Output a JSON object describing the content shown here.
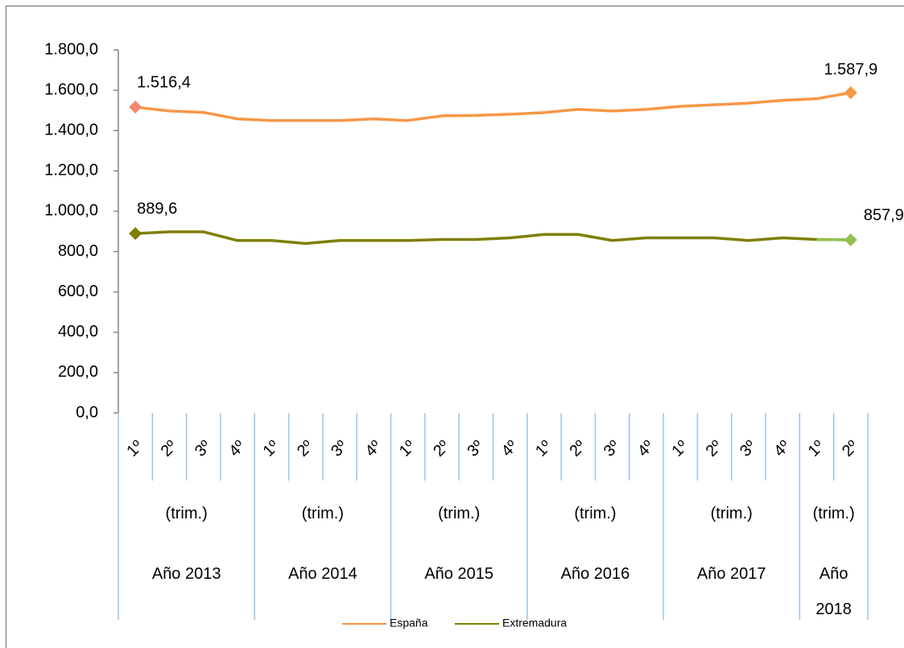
{
  "chart_data": {
    "type": "line",
    "groups": [
      {
        "name": "Año 2013",
        "sub": "(trim.)",
        "categories": [
          "1º",
          "2º",
          "3º",
          "4º"
        ]
      },
      {
        "name": "Año 2014",
        "sub": "(trim.)",
        "categories": [
          "1º",
          "2º",
          "3º",
          "4º"
        ]
      },
      {
        "name": "Año 2015",
        "sub": "(trim.)",
        "categories": [
          "1º",
          "2º",
          "3º",
          "4º"
        ]
      },
      {
        "name": "Año 2016",
        "sub": "(trim.)",
        "categories": [
          "1º",
          "2º",
          "3º",
          "4º"
        ]
      },
      {
        "name": "Año 2017",
        "sub": "(trim.)",
        "categories": [
          "1º",
          "2º",
          "3º",
          "4º"
        ]
      },
      {
        "name": "Año 2018",
        "sub": "(trim.)",
        "categories": [
          "1º",
          "2º"
        ]
      }
    ],
    "series": [
      {
        "name": "España",
        "color": "#f79646",
        "marker_colors": [
          "#f4876e",
          "#f79646"
        ],
        "values": [
          1516.4,
          1497,
          1490,
          1458,
          1450,
          1450,
          1450,
          1458,
          1450,
          1473,
          1475,
          1481,
          1489,
          1505,
          1497,
          1505,
          1520,
          1528,
          1536,
          1550,
          1558,
          1587.9
        ],
        "value_labels": [
          "1.516,4",
          null,
          null,
          null,
          null,
          null,
          null,
          null,
          null,
          null,
          null,
          null,
          null,
          null,
          null,
          null,
          null,
          null,
          null,
          null,
          null,
          "1.587,9"
        ]
      },
      {
        "name": "Extremadura",
        "color": "#7f7f00",
        "marker_colors": [
          "#7f7f00",
          "#92c050"
        ],
        "last_segment_color": "#92c050",
        "values": [
          889.6,
          898,
          898,
          855,
          855,
          840,
          855,
          855,
          855,
          860,
          860,
          868,
          885,
          885,
          855,
          868,
          868,
          868,
          855,
          868,
          860,
          857.9
        ],
        "value_labels": [
          "889,6",
          null,
          null,
          null,
          null,
          null,
          null,
          null,
          null,
          null,
          null,
          null,
          null,
          null,
          null,
          null,
          null,
          null,
          null,
          null,
          null,
          "857,9"
        ]
      }
    ],
    "ylim": [
      0,
      1800
    ],
    "yticks": [
      {
        "value": 0,
        "label": "0,0"
      },
      {
        "value": 200,
        "label": "200,0"
      },
      {
        "value": 400,
        "label": "400,0"
      },
      {
        "value": 600,
        "label": "600,0"
      },
      {
        "value": 800,
        "label": "800,0"
      },
      {
        "value": 1000,
        "label": "1.000,0"
      },
      {
        "value": 1200,
        "label": "1.200,0"
      },
      {
        "value": 1400,
        "label": "1.400,0"
      },
      {
        "value": 1600,
        "label": "1.600,0"
      },
      {
        "value": 1800,
        "label": "1.800,0"
      }
    ],
    "grid": false,
    "legend": "bottom"
  }
}
